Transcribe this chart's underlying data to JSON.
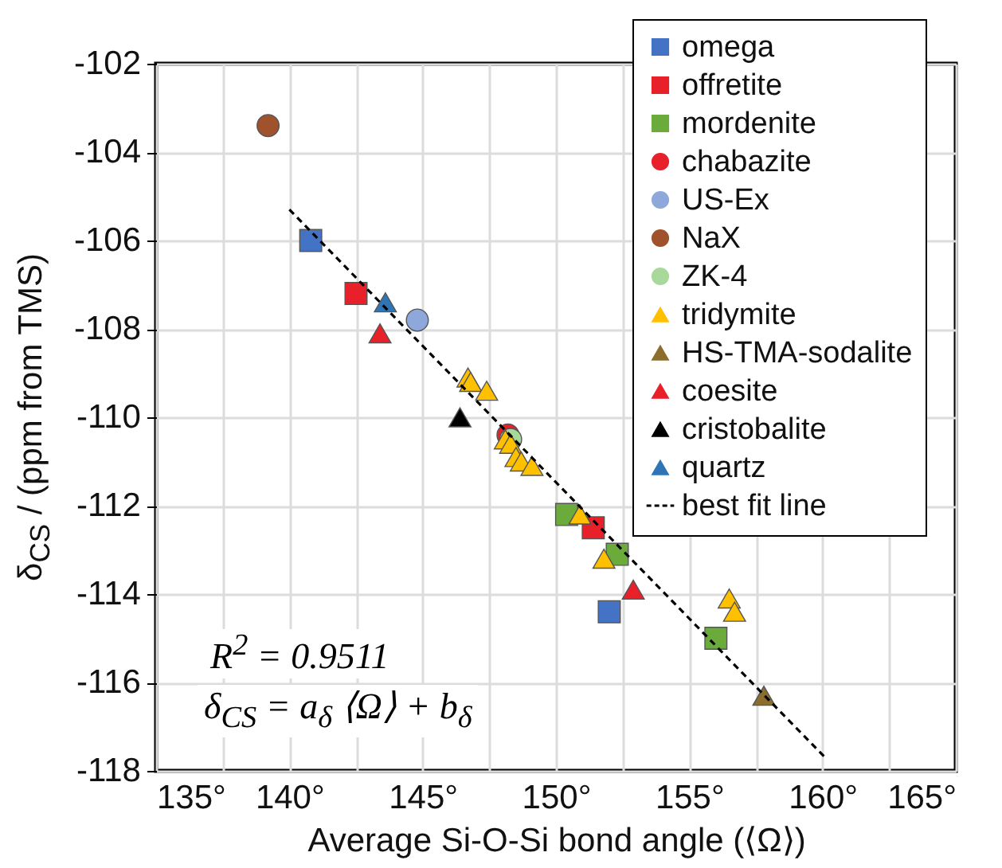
{
  "chart_data": {
    "type": "scatter",
    "xlabel": "Average Si-O-Si bond angle (⟨Ω⟩)",
    "ylabel": "δ$_{CS}$ / (ppm from TMS)",
    "xlim": [
      135,
      165
    ],
    "ylim": [
      -118,
      -102
    ],
    "xticks": [
      {
        "value": 135,
        "label": "135°"
      },
      {
        "value": 137.5,
        "label": null
      },
      {
        "value": 140,
        "label": "140°"
      },
      {
        "value": 142.5,
        "label": null
      },
      {
        "value": 145,
        "label": "145°"
      },
      {
        "value": 147.5,
        "label": null
      },
      {
        "value": 150,
        "label": "150°"
      },
      {
        "value": 152.5,
        "label": null
      },
      {
        "value": 155,
        "label": "155°"
      },
      {
        "value": 157.5,
        "label": null
      },
      {
        "value": 160,
        "label": "160°"
      },
      {
        "value": 162.5,
        "label": null
      },
      {
        "value": 165,
        "label": "165°"
      }
    ],
    "yticks": [
      -102,
      -104,
      -106,
      -108,
      -110,
      -112,
      -114,
      -116,
      -118
    ],
    "grid": true,
    "legend": "top right",
    "annotations": [
      "R$^{2}$ = 0.9511",
      "δ$_{CS}$ = a$_{δ}$ ⟨Ω⟩ + b$_{δ}$"
    ],
    "series": [
      {
        "name": "omega",
        "color": "#4472c4",
        "marker": "square",
        "x": [
          140.8,
          152.0
        ],
        "values": [
          -106.0,
          -114.4
        ]
      },
      {
        "name": "offretite",
        "color": "#e8202a",
        "marker": "square",
        "x": [
          142.5,
          151.4
        ],
        "values": [
          -107.2,
          -112.5
        ]
      },
      {
        "name": "mordenite",
        "color": "#6aab3c",
        "marker": "square",
        "x": [
          150.4,
          152.3,
          156.0
        ],
        "values": [
          -112.2,
          -113.1,
          -115.0
        ]
      },
      {
        "name": "chabazite",
        "color": "#e8202a",
        "marker": "circle",
        "x": [
          148.2
        ],
        "values": [
          -110.4
        ]
      },
      {
        "name": "US-Ex",
        "color": "#8fa8dc",
        "marker": "circle",
        "x": [
          144.8
        ],
        "values": [
          -107.8
        ]
      },
      {
        "name": "NaX",
        "color": "#a0522d",
        "marker": "circle",
        "x": [
          139.2
        ],
        "values": [
          -103.4
        ]
      },
      {
        "name": "ZK-4",
        "color": "#a8d89a",
        "marker": "circle",
        "x": [
          148.3
        ],
        "values": [
          -110.5
        ]
      },
      {
        "name": "tridymite",
        "color": "#ffc000",
        "marker": "triangle",
        "x": [
          146.7,
          146.8,
          147.4,
          148.1,
          148.3,
          148.5,
          148.7,
          149.1,
          150.9,
          151.8,
          156.5,
          156.7
        ],
        "values": [
          -109.1,
          -109.2,
          -109.4,
          -110.5,
          -110.6,
          -110.9,
          -111.0,
          -111.1,
          -112.2,
          -113.2,
          -114.1,
          -114.4
        ]
      },
      {
        "name": "HS-TMA-sodalite",
        "color": "#8b6d2e",
        "marker": "triangle",
        "x": [
          157.8
        ],
        "values": [
          -116.3
        ]
      },
      {
        "name": "coesite",
        "color": "#e8202a",
        "marker": "triangle",
        "x": [
          143.4,
          152.9
        ],
        "values": [
          -108.1,
          -113.9
        ]
      },
      {
        "name": "cristobalite",
        "color": "#000000",
        "marker": "triangle",
        "x": [
          146.4
        ],
        "values": [
          -110.0
        ]
      },
      {
        "name": "quartz",
        "color": "#2e75b6",
        "marker": "triangle",
        "x": [
          143.6
        ],
        "values": [
          -107.4
        ]
      },
      {
        "name": "best fit line",
        "type": "line",
        "color": "#000000",
        "line_style": "dashed",
        "x": [
          140.0,
          160.1
        ],
        "values": [
          -105.3,
          -117.7
        ]
      }
    ]
  }
}
